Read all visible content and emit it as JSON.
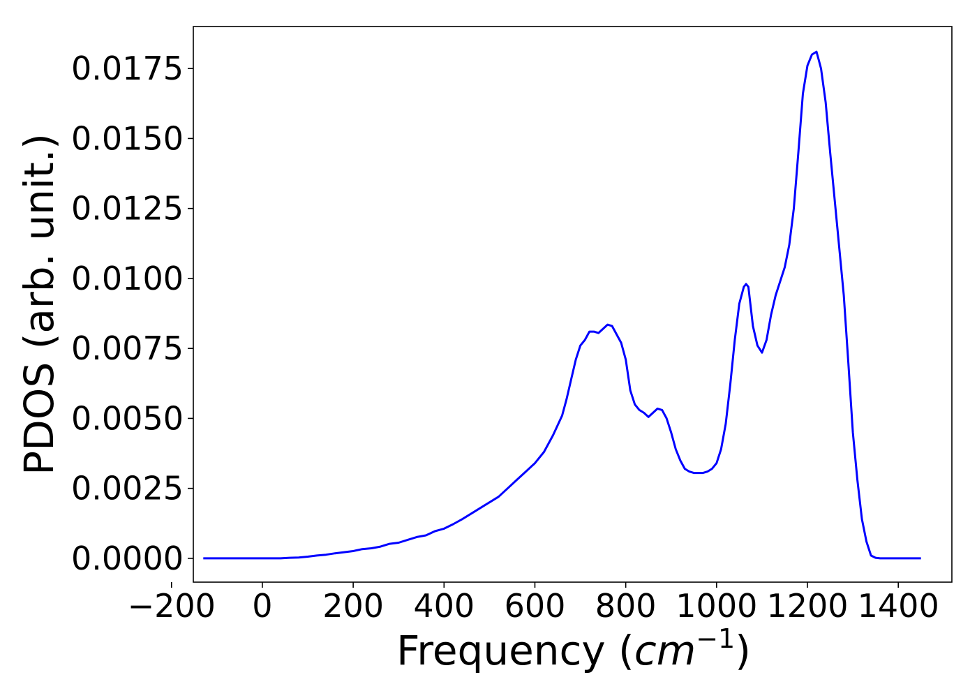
{
  "chart_data": {
    "type": "line",
    "title": "",
    "xlabel": "Frequency (",
    "xlabel_math": "cm",
    "xlabel_sup": "−1",
    "xlabel_end": ")",
    "ylabel": "PDOS (arb. unit.)",
    "xlim": [
      -152,
      1518
    ],
    "ylim": [
      -0.00085,
      0.019
    ],
    "grid": false,
    "legend": "none",
    "line_color": "#0000ff",
    "xticks": [
      -200,
      0,
      200,
      400,
      600,
      800,
      1000,
      1200,
      1400
    ],
    "xtick_labels": [
      "−200",
      "0",
      "200",
      "400",
      "600",
      "800",
      "1000",
      "1200",
      "1400"
    ],
    "yticks": [
      0,
      0.0025,
      0.005,
      0.0075,
      0.01,
      0.0125,
      0.015,
      0.0175
    ],
    "ytick_labels": [
      "0.0000",
      "0.0025",
      "0.0050",
      "0.0075",
      "0.0100",
      "0.0125",
      "0.0150",
      "0.0175"
    ],
    "series": [
      {
        "x": [
          -130,
          -100,
          -50,
          0,
          40,
          60,
          80,
          100,
          120,
          140,
          160,
          180,
          200,
          220,
          240,
          260,
          280,
          300,
          320,
          340,
          360,
          380,
          400,
          420,
          440,
          460,
          480,
          500,
          520,
          540,
          560,
          580,
          600,
          620,
          640,
          660,
          670,
          680,
          690,
          700,
          710,
          720,
          730,
          740,
          750,
          760,
          770,
          780,
          790,
          800,
          810,
          820,
          830,
          840,
          850,
          860,
          870,
          880,
          890,
          900,
          910,
          920,
          930,
          940,
          950,
          960,
          970,
          980,
          990,
          1000,
          1010,
          1020,
          1030,
          1040,
          1050,
          1060,
          1065,
          1070,
          1080,
          1090,
          1100,
          1110,
          1120,
          1130,
          1140,
          1150,
          1160,
          1170,
          1180,
          1190,
          1200,
          1210,
          1220,
          1225,
          1230,
          1240,
          1250,
          1260,
          1270,
          1280,
          1290,
          1300,
          1310,
          1320,
          1330,
          1340,
          1350,
          1360,
          1380,
          1420,
          1450
        ],
        "y": [
          0,
          0,
          0,
          0,
          0,
          2e-05,
          3e-05,
          6e-05,
          0.0001,
          0.00013,
          0.00018,
          0.00022,
          0.00026,
          0.00033,
          0.00036,
          0.00042,
          0.00052,
          0.00056,
          0.00066,
          0.00076,
          0.00082,
          0.00097,
          0.00106,
          0.00122,
          0.0014,
          0.0016,
          0.0018,
          0.002,
          0.0022,
          0.0025,
          0.0028,
          0.0031,
          0.0034,
          0.0038,
          0.0044,
          0.0051,
          0.0057,
          0.0064,
          0.0071,
          0.0076,
          0.0078,
          0.0081,
          0.0081,
          0.00805,
          0.0082,
          0.00835,
          0.0083,
          0.008,
          0.0077,
          0.0071,
          0.006,
          0.0055,
          0.0053,
          0.0052,
          0.00505,
          0.0052,
          0.00535,
          0.0053,
          0.005,
          0.0045,
          0.0039,
          0.0035,
          0.0032,
          0.0031,
          0.00305,
          0.00305,
          0.00305,
          0.0031,
          0.0032,
          0.0034,
          0.0039,
          0.0048,
          0.0062,
          0.0078,
          0.0091,
          0.0097,
          0.0098,
          0.0097,
          0.0083,
          0.0076,
          0.00735,
          0.0078,
          0.0087,
          0.0094,
          0.0099,
          0.0104,
          0.0112,
          0.0125,
          0.0145,
          0.0166,
          0.0176,
          0.018,
          0.0181,
          0.0178,
          0.0175,
          0.0163,
          0.0145,
          0.0128,
          0.0111,
          0.0094,
          0.007,
          0.0045,
          0.0028,
          0.0014,
          0.0006,
          0.0001,
          2e-05,
          0,
          0,
          0,
          0
        ]
      }
    ]
  }
}
